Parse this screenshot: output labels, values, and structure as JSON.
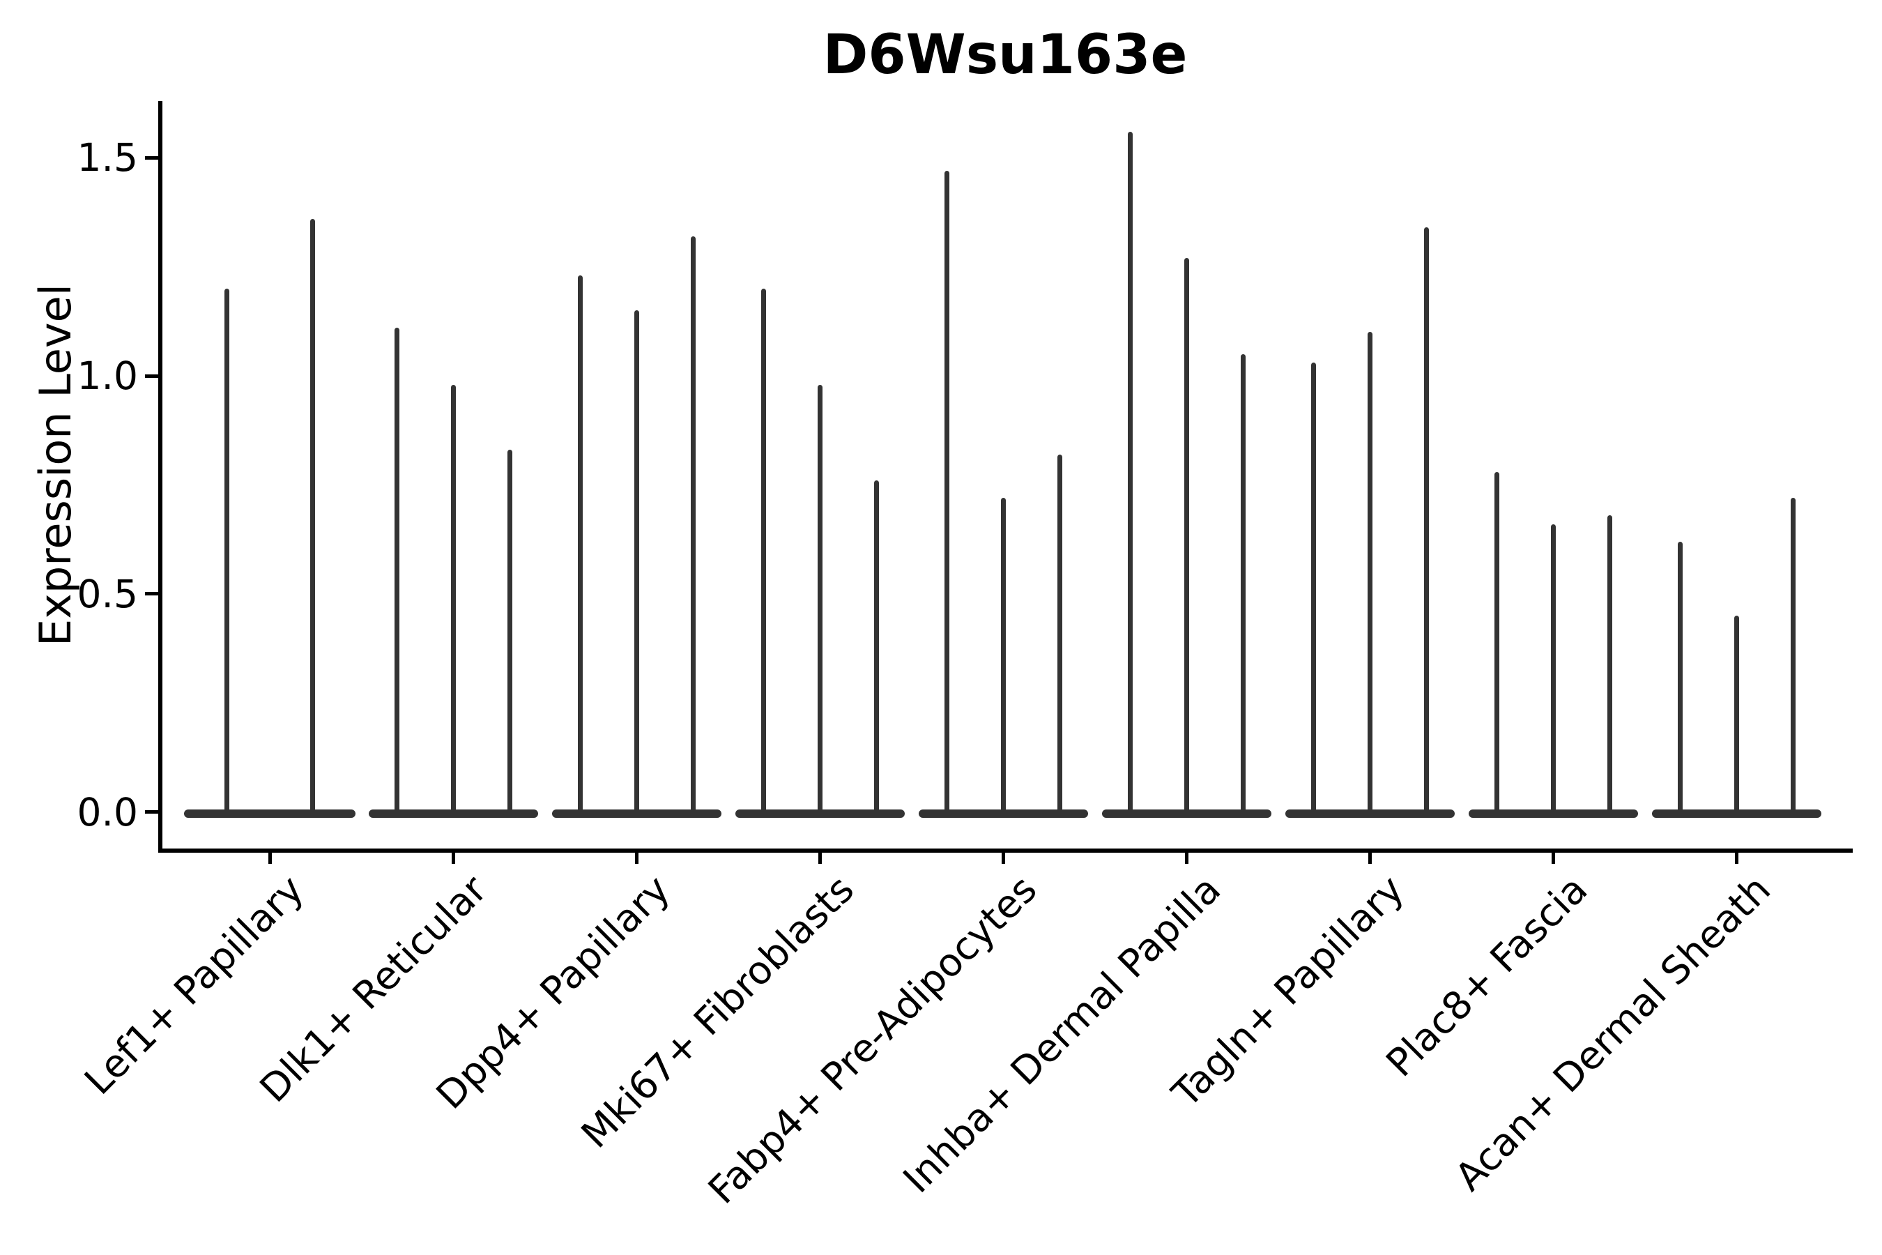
{
  "title": "D6Wsu163e",
  "y_axis": {
    "label": "Expression Level",
    "ticks": [
      {
        "value": 0.0,
        "label": "0.0"
      },
      {
        "value": 0.5,
        "label": "0.5"
      },
      {
        "value": 1.0,
        "label": "1.0"
      },
      {
        "value": 1.5,
        "label": "1.5"
      }
    ]
  },
  "colors": {
    "violin": "#333333",
    "axis": "#000000",
    "text": "#000000",
    "background": "#ffffff"
  },
  "chart_data": {
    "type": "violin",
    "title": "D6Wsu163e",
    "ylabel": "Expression Level",
    "xlabel": "",
    "orientation": "vertical",
    "grid": false,
    "legend": null,
    "ylim": [
      -0.09,
      1.63
    ],
    "baseline_value": 0.0,
    "note": "Each category shows narrow violins: bulk of density at 0 with a thin tail reaching the listed maximum expression value.",
    "categories": [
      "Lef1+ Papillary",
      "Dlk1+ Reticular",
      "Dpp4+ Papillary",
      "Mki67+ Fibroblasts",
      "Fabp4+ Pre-Adipocytes",
      "Inhba+ Dermal Papilla",
      "Tagln+ Papillary",
      "Plac8+ Fascia",
      "Acan+ Dermal Sheath"
    ],
    "violins": [
      {
        "category": "Lef1+ Papillary",
        "max_values": [
          1.2,
          1.36
        ]
      },
      {
        "category": "Dlk1+ Reticular",
        "max_values": [
          1.11,
          0.98,
          0.83
        ]
      },
      {
        "category": "Dpp4+ Papillary",
        "max_values": [
          1.23,
          1.15,
          1.32
        ]
      },
      {
        "category": "Mki67+ Fibroblasts",
        "max_values": [
          1.2,
          0.98,
          0.76
        ]
      },
      {
        "category": "Fabp4+ Pre-Adipocytes",
        "max_values": [
          1.47,
          0.72,
          0.82
        ]
      },
      {
        "category": "Inhba+ Dermal Papilla",
        "max_values": [
          1.56,
          1.27,
          1.05
        ]
      },
      {
        "category": "Tagln+ Papillary",
        "max_values": [
          1.03,
          1.1,
          1.34
        ]
      },
      {
        "category": "Plac8+ Fascia",
        "max_values": [
          0.78,
          0.66,
          0.68
        ]
      },
      {
        "category": "Acan+ Dermal Sheath",
        "max_values": [
          0.62,
          0.45,
          0.72
        ]
      }
    ]
  }
}
